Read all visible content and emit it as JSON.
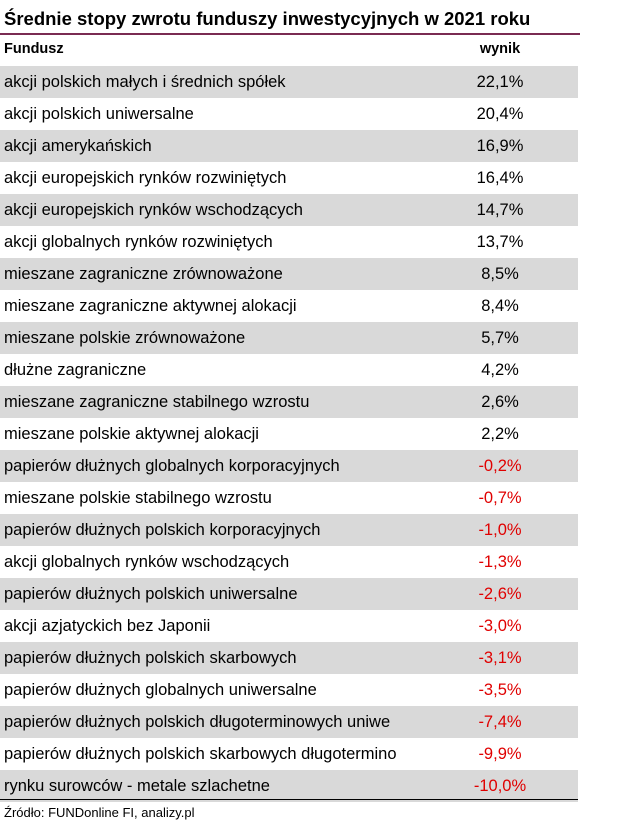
{
  "title": "Średnie stopy zwrotu funduszy inwestycyjnych w 2021 roku",
  "colors": {
    "title_rule": "#7a2b52",
    "row_shade": "#d9d9d9",
    "negative_value": "#e00000"
  },
  "table": {
    "headers": {
      "fund": "Fundusz",
      "result": "wynik"
    },
    "rows": [
      {
        "fund": "akcji polskich małych i średnich spółek",
        "result": "22,1%",
        "negative": false
      },
      {
        "fund": "akcji polskich uniwersalne",
        "result": "20,4%",
        "negative": false
      },
      {
        "fund": "akcji amerykańskich",
        "result": "16,9%",
        "negative": false
      },
      {
        "fund": "akcji europejskich rynków rozwiniętych",
        "result": "16,4%",
        "negative": false
      },
      {
        "fund": "akcji europejskich rynków wschodzących",
        "result": "14,7%",
        "negative": false
      },
      {
        "fund": "akcji globalnych rynków rozwiniętych",
        "result": "13,7%",
        "negative": false
      },
      {
        "fund": "mieszane zagraniczne zrównoważone",
        "result": "8,5%",
        "negative": false
      },
      {
        "fund": "mieszane zagraniczne aktywnej alokacji",
        "result": "8,4%",
        "negative": false
      },
      {
        "fund": "mieszane polskie zrównoważone",
        "result": "5,7%",
        "negative": false
      },
      {
        "fund": "dłużne zagraniczne",
        "result": "4,2%",
        "negative": false
      },
      {
        "fund": "mieszane zagraniczne stabilnego wzrostu",
        "result": "2,6%",
        "negative": false
      },
      {
        "fund": "mieszane polskie aktywnej alokacji",
        "result": "2,2%",
        "negative": false
      },
      {
        "fund": "papierów dłużnych globalnych korporacyjnych",
        "result": "-0,2%",
        "negative": true
      },
      {
        "fund": "mieszane polskie stabilnego wzrostu",
        "result": "-0,7%",
        "negative": true
      },
      {
        "fund": "papierów dłużnych polskich korporacyjnych",
        "result": "-1,0%",
        "negative": true
      },
      {
        "fund": "akcji globalnych rynków wschodzących",
        "result": "-1,3%",
        "negative": true
      },
      {
        "fund": "papierów dłużnych polskich uniwersalne",
        "result": "-2,6%",
        "negative": true
      },
      {
        "fund": "akcji azjatyckich bez Japonii",
        "result": "-3,0%",
        "negative": true
      },
      {
        "fund": "papierów dłużnych polskich skarbowych",
        "result": "-3,1%",
        "negative": true
      },
      {
        "fund": "papierów dłużnych globalnych uniwersalne",
        "result": "-3,5%",
        "negative": true
      },
      {
        "fund": "papierów dłużnych polskich długoterminowych uniwe",
        "result": "-7,4%",
        "negative": true
      },
      {
        "fund": "papierów dłużnych polskich skarbowych długotermino",
        "result": "-9,9%",
        "negative": true
      },
      {
        "fund": "rynku surowców - metale szlachetne",
        "result": "-10,0%",
        "negative": true
      }
    ]
  },
  "source": "Źródło: FUNDonline FI, analizy.pl"
}
